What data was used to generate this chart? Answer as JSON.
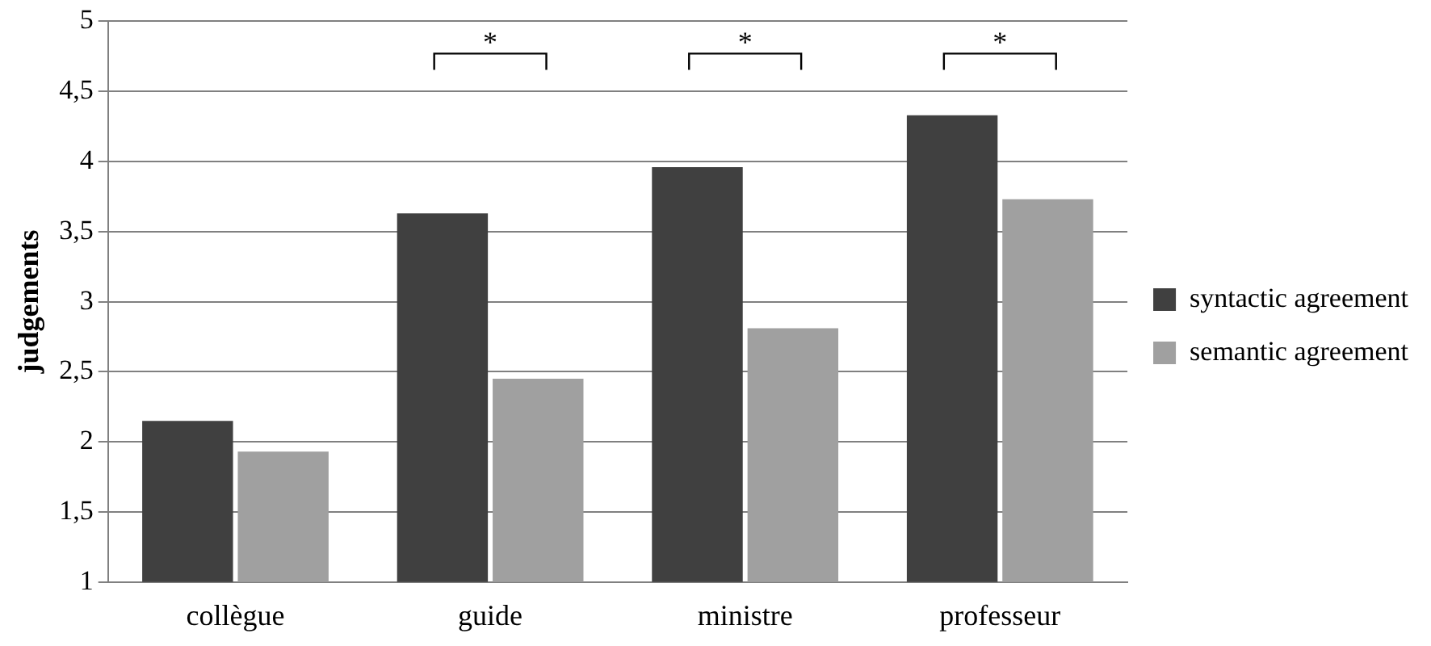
{
  "chart_data": {
    "type": "bar",
    "ylabel": "judgements",
    "categories": [
      "collègue",
      "guide",
      "ministre",
      "professeur"
    ],
    "series": [
      {
        "name": "syntactic agreement",
        "color": "#404040",
        "values": [
          2.15,
          3.63,
          3.96,
          4.33
        ]
      },
      {
        "name": "semantic agreement",
        "color": "#a0a0a0",
        "values": [
          1.93,
          2.45,
          2.81,
          3.73
        ]
      }
    ],
    "ylim": [
      1,
      5
    ],
    "yticks": [
      1,
      {
        "value": 1.5,
        "label": "1,5"
      },
      2,
      {
        "value": 2.5,
        "label": "2,5"
      },
      3,
      {
        "value": 3.5,
        "label": "3,5"
      },
      4,
      {
        "value": 4.5,
        "label": "4,5"
      },
      5
    ],
    "grid": "y",
    "legend": "right",
    "annotations": [
      "*",
      "*",
      "*"
    ]
  }
}
